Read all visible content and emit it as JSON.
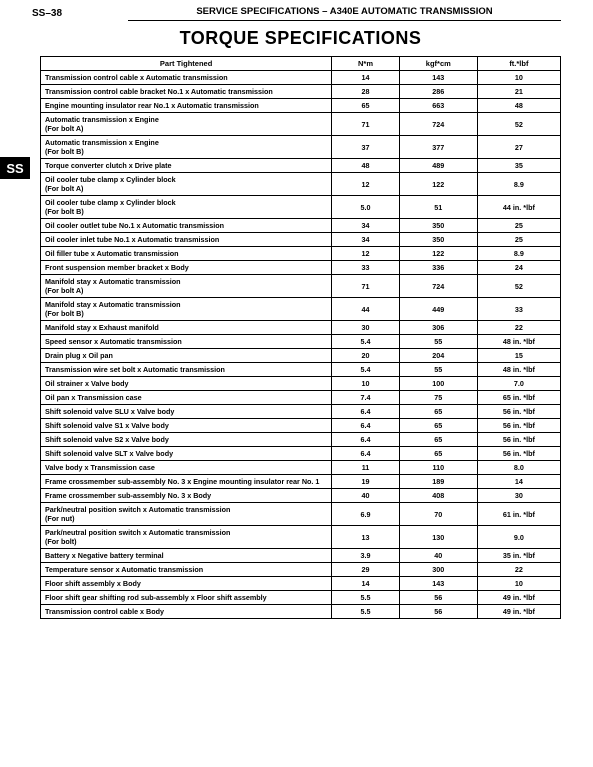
{
  "page_number": "SS–38",
  "header": "SERVICE SPECIFICATIONS  –  A340E AUTOMATIC TRANSMISSION",
  "title": "TORQUE SPECIFICATIONS",
  "side_tab": "SS",
  "columns": [
    "Part Tightened",
    "N*m",
    "kgf*cm",
    "ft.*lbf"
  ],
  "rows": [
    {
      "part": "Transmission control cable x Automatic transmission",
      "nm": "14",
      "kg": "143",
      "ft": "10"
    },
    {
      "part": "Transmission control cable bracket No.1 x Automatic transmission",
      "nm": "28",
      "kg": "286",
      "ft": "21"
    },
    {
      "part": "Engine mounting insulator rear No.1 x Automatic transmission",
      "nm": "65",
      "kg": "663",
      "ft": "48"
    },
    {
      "part": "Automatic transmission x Engine\n(For bolt A)",
      "nm": "71",
      "kg": "724",
      "ft": "52"
    },
    {
      "part": "Automatic transmission x Engine\n(For bolt B)",
      "nm": "37",
      "kg": "377",
      "ft": "27"
    },
    {
      "part": "Torque converter clutch x Drive plate",
      "nm": "48",
      "kg": "489",
      "ft": "35"
    },
    {
      "part": "Oil cooler tube clamp x Cylinder block\n(For bolt A)",
      "nm": "12",
      "kg": "122",
      "ft": "8.9"
    },
    {
      "part": "Oil cooler tube clamp x Cylinder block\n(For bolt B)",
      "nm": "5.0",
      "kg": "51",
      "ft": "44 in. *lbf"
    },
    {
      "part": "Oil cooler outlet tube No.1 x Automatic transmission",
      "nm": "34",
      "kg": "350",
      "ft": "25"
    },
    {
      "part": "Oil cooler inlet tube No.1 x Automatic transmission",
      "nm": "34",
      "kg": "350",
      "ft": "25"
    },
    {
      "part": "Oil filler tube x Automatic transmission",
      "nm": "12",
      "kg": "122",
      "ft": "8.9"
    },
    {
      "part": "Front suspension member bracket x Body",
      "nm": "33",
      "kg": "336",
      "ft": "24"
    },
    {
      "part": "Manifold stay x Automatic transmission\n(For bolt A)",
      "nm": "71",
      "kg": "724",
      "ft": "52"
    },
    {
      "part": "Manifold stay x Automatic transmission\n(For bolt B)",
      "nm": "44",
      "kg": "449",
      "ft": "33"
    },
    {
      "part": "Manifold stay x Exhaust manifold",
      "nm": "30",
      "kg": "306",
      "ft": "22"
    },
    {
      "part": "Speed sensor x Automatic transmission",
      "nm": "5.4",
      "kg": "55",
      "ft": "48 in. *lbf"
    },
    {
      "part": "Drain plug x Oil pan",
      "nm": "20",
      "kg": "204",
      "ft": "15"
    },
    {
      "part": "Transmission wire set bolt x Automatic transmission",
      "nm": "5.4",
      "kg": "55",
      "ft": "48 in. *lbf"
    },
    {
      "part": "Oil strainer x Valve body",
      "nm": "10",
      "kg": "100",
      "ft": "7.0"
    },
    {
      "part": "Oil pan x Transmission case",
      "nm": "7.4",
      "kg": "75",
      "ft": "65 in. *lbf"
    },
    {
      "part": "Shift solenoid valve SLU x Valve body",
      "nm": "6.4",
      "kg": "65",
      "ft": "56 in. *lbf"
    },
    {
      "part": "Shift solenoid valve S1 x Valve body",
      "nm": "6.4",
      "kg": "65",
      "ft": "56 in. *lbf"
    },
    {
      "part": "Shift solenoid valve S2 x Valve body",
      "nm": "6.4",
      "kg": "65",
      "ft": "56 in. *lbf"
    },
    {
      "part": "Shift solenoid valve SLT x Valve body",
      "nm": "6.4",
      "kg": "65",
      "ft": "56 in. *lbf"
    },
    {
      "part": "Valve body x Transmission case",
      "nm": "11",
      "kg": "110",
      "ft": "8.0"
    },
    {
      "part": "Frame crossmember sub-assembly No. 3 x Engine mounting insulator rear No. 1",
      "nm": "19",
      "kg": "189",
      "ft": "14"
    },
    {
      "part": "Frame crossmember sub-assembly No. 3 x Body",
      "nm": "40",
      "kg": "408",
      "ft": "30"
    },
    {
      "part": "Park/neutral position switch x Automatic transmission\n(For nut)",
      "nm": "6.9",
      "kg": "70",
      "ft": "61 in. *lbf"
    },
    {
      "part": "Park/neutral position switch x Automatic transmission\n(For bolt)",
      "nm": "13",
      "kg": "130",
      "ft": "9.0"
    },
    {
      "part": "Battery x Negative battery terminal",
      "nm": "3.9",
      "kg": "40",
      "ft": "35 in. *lbf"
    },
    {
      "part": "Temperature sensor x Automatic transmission",
      "nm": "29",
      "kg": "300",
      "ft": "22"
    },
    {
      "part": "Floor shift assembly x Body",
      "nm": "14",
      "kg": "143",
      "ft": "10"
    },
    {
      "part": "Floor shift gear shifting rod sub-assembly x Floor shift assembly",
      "nm": "5.5",
      "kg": "56",
      "ft": "49 in. *lbf"
    },
    {
      "part": "Transmission control cable x Body",
      "nm": "5.5",
      "kg": "56",
      "ft": "49 in. *lbf"
    }
  ]
}
